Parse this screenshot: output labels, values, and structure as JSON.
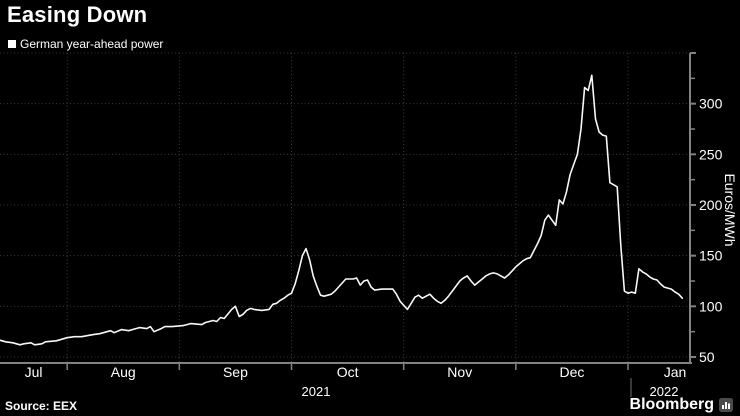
{
  "header": {
    "title": "Easing Down"
  },
  "legend": {
    "label": "German year-ahead power"
  },
  "source": {
    "label": "Source: EEX"
  },
  "branding": {
    "wordmark": "Bloomberg"
  },
  "colors": {
    "background": "#000000",
    "line": "#f8f8f8",
    "grid": "#3a3a3a",
    "axis": "#828282",
    "text": "#ffffff"
  },
  "axes": {
    "y_unit": "Euros/MWh",
    "y_major_ticks": [
      50,
      100,
      150,
      200,
      250,
      300
    ],
    "y_minor_step": 25,
    "ylim": [
      50,
      350
    ],
    "x_month_labels": [
      "Jul",
      "Aug",
      "Sep",
      "Oct",
      "Nov",
      "Dec",
      "Jan"
    ],
    "x_year_labels": [
      "2021",
      "2022"
    ]
  },
  "chart_data": {
    "type": "line",
    "title": "Easing Down",
    "ylabel": "Euros/MWh",
    "ylim": [
      50,
      350
    ],
    "grid": true,
    "legend_position": "top-left",
    "series": [
      {
        "name": "German year-ahead power",
        "unit": "Euros/MWh",
        "color": "#f8f8f8",
        "points": [
          [
            "2021-07-13",
            67
          ],
          [
            "2021-07-15",
            65
          ],
          [
            "2021-07-17",
            64
          ],
          [
            "2021-07-19",
            62
          ],
          [
            "2021-07-20",
            63
          ],
          [
            "2021-07-22",
            64
          ],
          [
            "2021-07-23",
            62
          ],
          [
            "2021-07-25",
            63
          ],
          [
            "2021-07-26",
            65
          ],
          [
            "2021-07-29",
            66
          ],
          [
            "2021-08-01",
            69
          ],
          [
            "2021-08-03",
            70
          ],
          [
            "2021-08-05",
            70
          ],
          [
            "2021-08-08",
            72
          ],
          [
            "2021-08-10",
            73
          ],
          [
            "2021-08-13",
            76
          ],
          [
            "2021-08-14",
            74
          ],
          [
            "2021-08-16",
            77
          ],
          [
            "2021-08-18",
            76
          ],
          [
            "2021-08-19",
            77
          ],
          [
            "2021-08-21",
            79
          ],
          [
            "2021-08-23",
            78
          ],
          [
            "2021-08-24",
            80
          ],
          [
            "2021-08-25",
            75
          ],
          [
            "2021-08-27",
            78
          ],
          [
            "2021-08-28",
            80
          ],
          [
            "2021-08-30",
            80
          ],
          [
            "2021-09-02",
            81
          ],
          [
            "2021-09-04",
            83
          ],
          [
            "2021-09-07",
            82
          ],
          [
            "2021-09-08",
            84
          ],
          [
            "2021-09-09",
            85
          ],
          [
            "2021-09-10",
            86
          ],
          [
            "2021-09-11",
            85
          ],
          [
            "2021-09-12",
            89
          ],
          [
            "2021-09-13",
            88
          ],
          [
            "2021-09-15",
            97
          ],
          [
            "2021-09-16",
            100
          ],
          [
            "2021-09-17",
            90
          ],
          [
            "2021-09-18",
            92
          ],
          [
            "2021-09-19",
            96
          ],
          [
            "2021-09-20",
            98
          ],
          [
            "2021-09-21",
            97
          ],
          [
            "2021-09-23",
            96
          ],
          [
            "2021-09-25",
            97
          ],
          [
            "2021-09-26",
            102
          ],
          [
            "2021-09-27",
            103
          ],
          [
            "2021-09-28",
            106
          ],
          [
            "2021-09-29",
            108
          ],
          [
            "2021-09-30",
            111
          ],
          [
            "2021-10-01",
            113
          ],
          [
            "2021-10-02",
            122
          ],
          [
            "2021-10-03",
            135
          ],
          [
            "2021-10-04",
            150
          ],
          [
            "2021-10-05",
            157
          ],
          [
            "2021-10-06",
            146
          ],
          [
            "2021-10-07",
            130
          ],
          [
            "2021-10-08",
            120
          ],
          [
            "2021-10-09",
            111
          ],
          [
            "2021-10-10",
            110
          ],
          [
            "2021-10-12",
            112
          ],
          [
            "2021-10-13",
            115
          ],
          [
            "2021-10-14",
            119
          ],
          [
            "2021-10-15",
            123
          ],
          [
            "2021-10-16",
            127
          ],
          [
            "2021-10-18",
            127
          ],
          [
            "2021-10-19",
            128
          ],
          [
            "2021-10-20",
            121
          ],
          [
            "2021-10-21",
            125
          ],
          [
            "2021-10-22",
            126
          ],
          [
            "2021-10-23",
            119
          ],
          [
            "2021-10-24",
            116
          ],
          [
            "2021-10-26",
            117
          ],
          [
            "2021-10-28",
            117
          ],
          [
            "2021-10-29",
            117
          ],
          [
            "2021-10-30",
            112
          ],
          [
            "2021-10-31",
            105
          ],
          [
            "2021-11-01",
            101
          ],
          [
            "2021-11-02",
            97
          ],
          [
            "2021-11-03",
            103
          ],
          [
            "2021-11-04",
            109
          ],
          [
            "2021-11-05",
            111
          ],
          [
            "2021-11-06",
            108
          ],
          [
            "2021-11-07",
            110
          ],
          [
            "2021-11-08",
            112
          ],
          [
            "2021-11-09",
            108
          ],
          [
            "2021-11-10",
            105
          ],
          [
            "2021-11-11",
            103
          ],
          [
            "2021-11-12",
            106
          ],
          [
            "2021-11-13",
            110
          ],
          [
            "2021-11-14",
            115
          ],
          [
            "2021-11-15",
            120
          ],
          [
            "2021-11-16",
            125
          ],
          [
            "2021-11-17",
            128
          ],
          [
            "2021-11-18",
            130
          ],
          [
            "2021-11-19",
            125
          ],
          [
            "2021-11-20",
            121
          ],
          [
            "2021-11-21",
            124
          ],
          [
            "2021-11-22",
            127
          ],
          [
            "2021-11-23",
            130
          ],
          [
            "2021-11-24",
            132
          ],
          [
            "2021-11-25",
            133
          ],
          [
            "2021-11-26",
            132
          ],
          [
            "2021-11-27",
            130
          ],
          [
            "2021-11-28",
            128
          ],
          [
            "2021-11-29",
            131
          ],
          [
            "2021-11-30",
            135
          ],
          [
            "2021-12-01",
            139
          ],
          [
            "2021-12-02",
            142
          ],
          [
            "2021-12-03",
            145
          ],
          [
            "2021-12-04",
            147
          ],
          [
            "2021-12-05",
            148
          ],
          [
            "2021-12-06",
            155
          ],
          [
            "2021-12-07",
            162
          ],
          [
            "2021-12-08",
            170
          ],
          [
            "2021-12-09",
            185
          ],
          [
            "2021-12-10",
            190
          ],
          [
            "2021-12-11",
            185
          ],
          [
            "2021-12-12",
            180
          ],
          [
            "2021-12-13",
            205
          ],
          [
            "2021-12-14",
            201
          ],
          [
            "2021-12-15",
            213
          ],
          [
            "2021-12-16",
            230
          ],
          [
            "2021-12-17",
            240
          ],
          [
            "2021-12-18",
            250
          ],
          [
            "2021-12-19",
            275
          ],
          [
            "2021-12-20",
            316
          ],
          [
            "2021-12-21",
            313
          ],
          [
            "2021-12-22",
            328
          ],
          [
            "2021-12-23",
            285
          ],
          [
            "2021-12-24",
            272
          ],
          [
            "2021-12-25",
            269
          ],
          [
            "2021-12-26",
            268
          ],
          [
            "2021-12-27",
            222
          ],
          [
            "2021-12-28",
            220
          ],
          [
            "2021-12-29",
            218
          ],
          [
            "2021-12-30",
            160
          ],
          [
            "2021-12-31",
            115
          ],
          [
            "2022-01-01",
            113
          ],
          [
            "2022-01-02",
            114
          ],
          [
            "2022-01-03",
            113
          ],
          [
            "2022-01-04",
            137
          ],
          [
            "2022-01-05",
            134
          ],
          [
            "2022-01-06",
            132
          ],
          [
            "2022-01-07",
            129
          ],
          [
            "2022-01-08",
            127
          ],
          [
            "2022-01-09",
            126
          ],
          [
            "2022-01-10",
            122
          ],
          [
            "2022-01-11",
            119
          ],
          [
            "2022-01-12",
            118
          ],
          [
            "2022-01-13",
            117
          ],
          [
            "2022-01-14",
            114
          ],
          [
            "2022-01-15",
            112
          ],
          [
            "2022-01-16",
            108
          ]
        ]
      }
    ]
  }
}
